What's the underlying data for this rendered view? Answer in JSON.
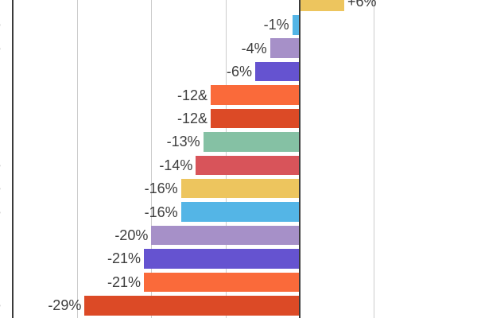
{
  "chart_data": {
    "type": "bar",
    "orientation": "horizontal",
    "title": "",
    "xlabel": "",
    "ylabel": "",
    "value_unit": "percent",
    "xlim": [
      -38.8,
      24
    ],
    "gridlines_pct": [
      -30,
      -20,
      -10,
      10
    ],
    "zero_line_pct": 0,
    "grid_on": true,
    "legend": "none",
    "axis_tick_labels_visible": false,
    "category_labels_clipped_at_left_edge": true,
    "bars": [
      {
        "label": "+6%",
        "value": 6,
        "color": "#edc55e",
        "category_fragment": "l"
      },
      {
        "label": "-1%",
        "value": -1,
        "color": "#54b5e6",
        "category_fragment": "e"
      },
      {
        "label": "-4%",
        "value": -4,
        "color": "#a690c8",
        "category_fragment": "e"
      },
      {
        "label": "-6%",
        "value": -6,
        "color": "#6553d0",
        "category_fragment": "l"
      },
      {
        "label": "-12&",
        "value": -12,
        "color": "#fa6a3a",
        "category_fragment": "i"
      },
      {
        "label": "-12&",
        "value": -12,
        "color": "#dc4a26",
        "category_fragment": "l"
      },
      {
        "label": "-13%",
        "value": -13,
        "color": "#85c1a4",
        "category_fragment": "i"
      },
      {
        "label": "-14%",
        "value": -14,
        "color": "#d8545a",
        "category_fragment": "e"
      },
      {
        "label": "-16%",
        "value": -16,
        "color": "#edc55e",
        "category_fragment": "e"
      },
      {
        "label": "-16%",
        "value": -16,
        "color": "#54b5e6",
        "category_fragment": "e"
      },
      {
        "label": "-20%",
        "value": -20,
        "color": "#a690c8",
        "category_fragment": "l"
      },
      {
        "label": "-21%",
        "value": -21,
        "color": "#6553d0",
        "category_fragment": "l"
      },
      {
        "label": "-21%",
        "value": -21,
        "color": "#fa6a3a",
        "category_fragment": "i"
      },
      {
        "label": "-29%",
        "value": -29,
        "color": "#dc4a26",
        "category_fragment": "e"
      }
    ],
    "colors": {
      "label_text": "#3d3d3d",
      "gridline": "#cccccc",
      "axis_line": "#3a3a3a",
      "background": "#ffffff"
    }
  }
}
